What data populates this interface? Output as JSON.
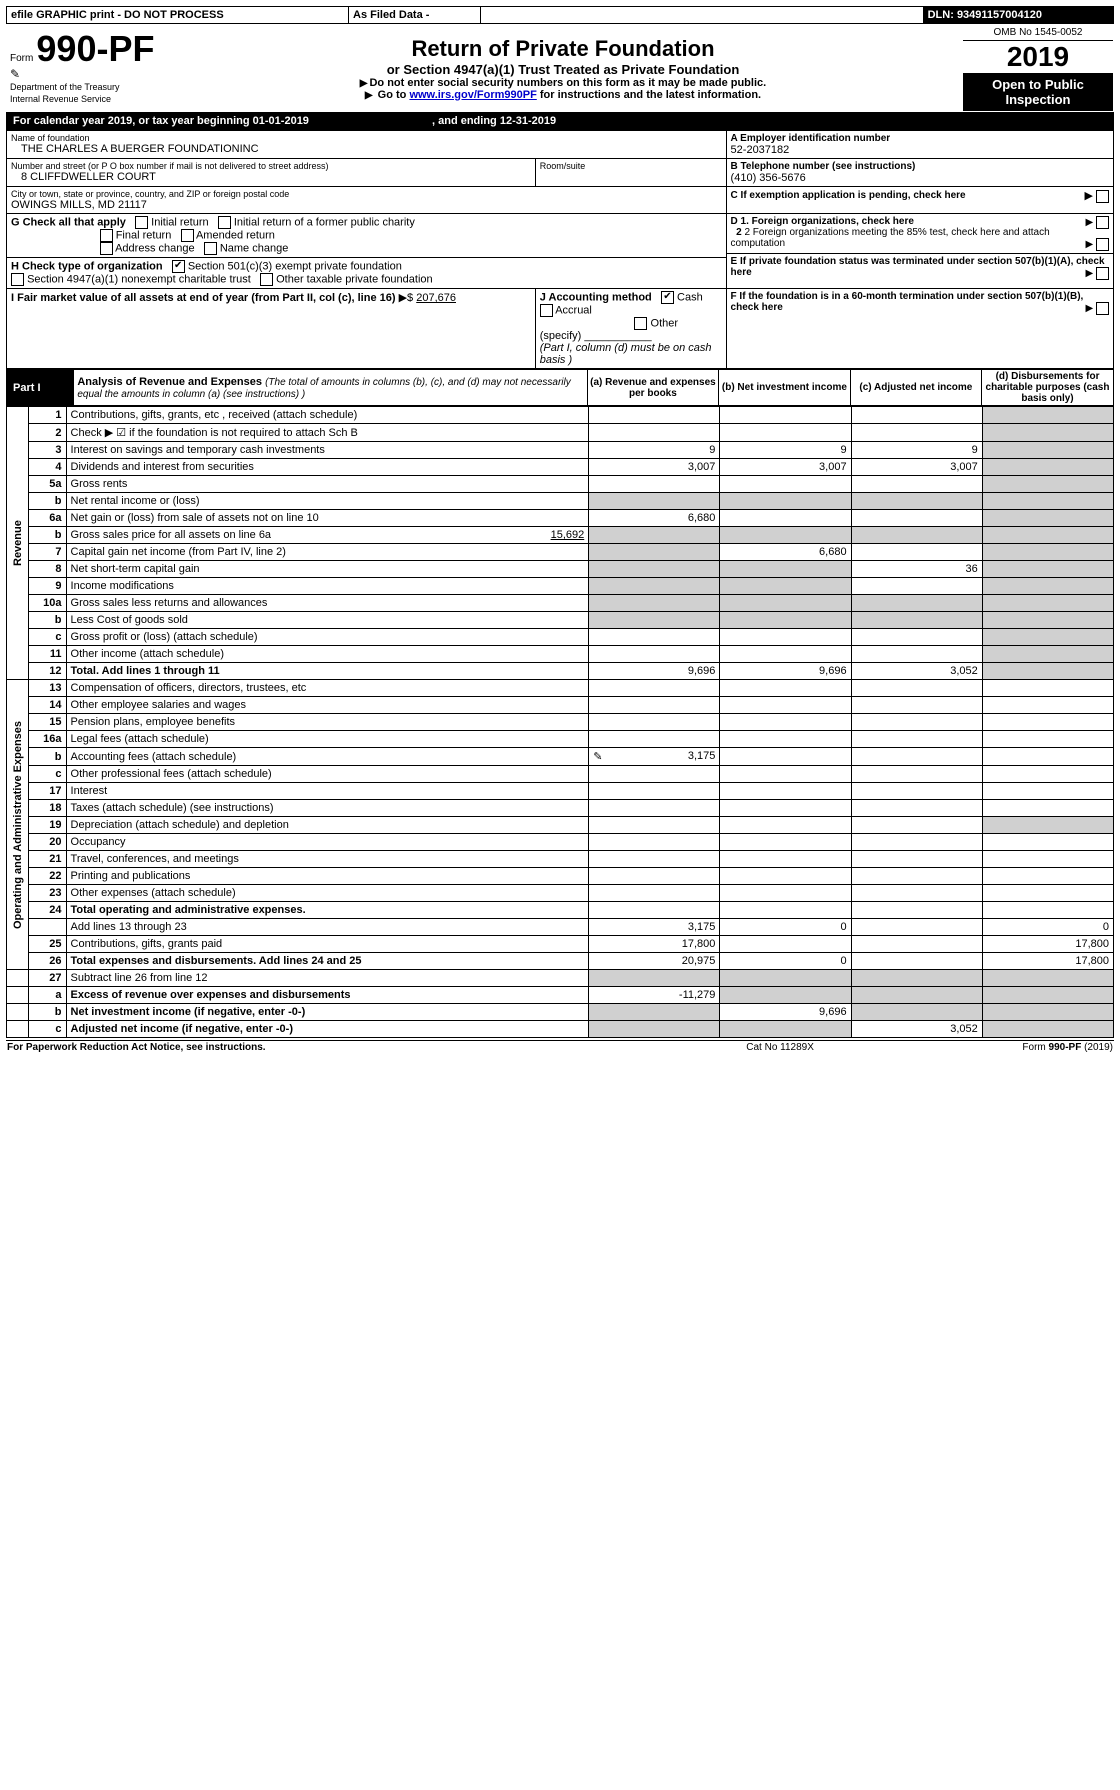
{
  "topbar": {
    "efile": "efile GRAPHIC print - DO NOT PROCESS",
    "asfiled": "As Filed Data -",
    "dln_label": "DLN:",
    "dln": "93491157004120"
  },
  "header": {
    "form_label": "Form",
    "form_no": "990-PF",
    "dept": "Department of the Treasury",
    "irs": "Internal Revenue Service",
    "title": "Return of Private Foundation",
    "subtitle": "or Section 4947(a)(1) Trust Treated as Private Foundation",
    "instr1": "Do not enter social security numbers on this form as it may be made public.",
    "instr2_a": "Go to ",
    "instr2_link": "www.irs.gov/Form990PF",
    "instr2_b": " for instructions and the latest information.",
    "omb": "OMB No 1545-0052",
    "year": "2019",
    "open": "Open to Public Inspection"
  },
  "cal": {
    "text_a": "For calendar year 2019, or tax year beginning ",
    "begin": "01-01-2019",
    "text_b": ", and ending ",
    "end": "12-31-2019"
  },
  "org": {
    "name_label": "Name of foundation",
    "name": "THE CHARLES A BUERGER FOUNDATIONINC",
    "addr_label": "Number and street (or P O  box number if mail is not delivered to street address)",
    "addr": "8 CLIFFDWELLER COURT",
    "room_label": "Room/suite",
    "city_label": "City or town, state or province, country, and ZIP or foreign postal code",
    "city": "OWINGS MILLS, MD  21117",
    "a_label": "A Employer identification number",
    "ein": "52-2037182",
    "b_label": "B Telephone number (see instructions)",
    "phone": "(410) 356-5676",
    "c_label": "C If exemption application is pending, check here"
  },
  "g": {
    "label": "G Check all that apply",
    "o1": "Initial return",
    "o2": "Initial return of a former public charity",
    "o3": "Final return",
    "o4": "Amended return",
    "o5": "Address change",
    "o6": "Name change"
  },
  "h": {
    "label": "H Check type of organization",
    "o1": "Section 501(c)(3) exempt private foundation",
    "o2": "Section 4947(a)(1) nonexempt charitable trust",
    "o3": "Other taxable private foundation"
  },
  "i": {
    "label": "I Fair market value of all assets at end of year (from Part II, col  (c), line 16) ",
    "val_prefix": "$ ",
    "val": "207,676"
  },
  "j": {
    "label": "J Accounting method",
    "cash": "Cash",
    "accrual": "Accrual",
    "other": "Other (specify)",
    "note": "(Part I, column (d) must be on cash basis )"
  },
  "d": {
    "d1": "D 1. Foreign organizations, check here",
    "d2": "2 Foreign organizations meeting the 85% test, check here and attach computation",
    "e": "E  If private foundation status was terminated under section 507(b)(1)(A), check here",
    "f": "F  If the foundation is in a 60-month termination under section 507(b)(1)(B), check here"
  },
  "part1": {
    "tag": "Part I",
    "title": "Analysis of Revenue and Expenses",
    "title_note": " (The total of amounts in columns (b), (c), and (d) may not necessarily equal the amounts in column (a) (see instructions) )",
    "col_a": "(a)  Revenue and expenses per books",
    "col_b": "(b) Net investment income",
    "col_c": "(c) Adjusted net income",
    "col_d": "(d) Disbursements for charitable purposes (cash basis only)",
    "side_rev": "Revenue",
    "side_exp": "Operating and Administrative Expenses"
  },
  "rows": {
    "r1": {
      "n": "1",
      "t": "Contributions, gifts, grants, etc , received (attach schedule)"
    },
    "r2": {
      "n": "2",
      "t": "Check ▶ ☑ if the foundation is not required to attach Sch  B"
    },
    "r3": {
      "n": "3",
      "t": "Interest on savings and temporary cash investments",
      "a": "9",
      "b": "9",
      "c": "9"
    },
    "r4": {
      "n": "4",
      "t": "Dividends and interest from securities",
      "a": "3,007",
      "b": "3,007",
      "c": "3,007"
    },
    "r5a": {
      "n": "5a",
      "t": "Gross rents"
    },
    "r5b": {
      "n": "b",
      "t": "Net rental income or (loss)"
    },
    "r6a": {
      "n": "6a",
      "t": "Net gain or (loss) from sale of assets not on line 10",
      "a": "6,680"
    },
    "r6b": {
      "n": "b",
      "t": "Gross sales price for all assets on line 6a",
      "inline": "15,692"
    },
    "r7": {
      "n": "7",
      "t": "Capital gain net income (from Part IV, line 2)",
      "b": "6,680"
    },
    "r8": {
      "n": "8",
      "t": "Net short-term capital gain",
      "c": "36"
    },
    "r9": {
      "n": "9",
      "t": "Income modifications"
    },
    "r10a": {
      "n": "10a",
      "t": "Gross sales less returns and allowances"
    },
    "r10b": {
      "n": "b",
      "t": "Less  Cost of goods sold"
    },
    "r10c": {
      "n": "c",
      "t": "Gross profit or (loss) (attach schedule)"
    },
    "r11": {
      "n": "11",
      "t": "Other income (attach schedule)"
    },
    "r12": {
      "n": "12",
      "t": "Total. Add lines 1 through 11",
      "bold": true,
      "a": "9,696",
      "b": "9,696",
      "c": "3,052"
    },
    "r13": {
      "n": "13",
      "t": "Compensation of officers, directors, trustees, etc"
    },
    "r14": {
      "n": "14",
      "t": "Other employee salaries and wages"
    },
    "r15": {
      "n": "15",
      "t": "Pension plans, employee benefits"
    },
    "r16a": {
      "n": "16a",
      "t": "Legal fees (attach schedule)"
    },
    "r16b": {
      "n": "b",
      "t": "Accounting fees (attach schedule)",
      "a": "3,175",
      "icon": true
    },
    "r16c": {
      "n": "c",
      "t": "Other professional fees (attach schedule)"
    },
    "r17": {
      "n": "17",
      "t": "Interest"
    },
    "r18": {
      "n": "18",
      "t": "Taxes (attach schedule) (see instructions)"
    },
    "r19": {
      "n": "19",
      "t": "Depreciation (attach schedule) and depletion"
    },
    "r20": {
      "n": "20",
      "t": "Occupancy"
    },
    "r21": {
      "n": "21",
      "t": "Travel, conferences, and meetings"
    },
    "r22": {
      "n": "22",
      "t": "Printing and publications"
    },
    "r23": {
      "n": "23",
      "t": "Other expenses (attach schedule)"
    },
    "r24": {
      "n": "24",
      "t": "Total operating and administrative expenses.",
      "bold": true
    },
    "r24b": {
      "n": "",
      "t": "Add lines 13 through 23",
      "a": "3,175",
      "b": "0",
      "d": "0"
    },
    "r25": {
      "n": "25",
      "t": "Contributions, gifts, grants paid",
      "a": "17,800",
      "d": "17,800"
    },
    "r26": {
      "n": "26",
      "t": "Total expenses and disbursements. Add lines 24 and 25",
      "bold": true,
      "a": "20,975",
      "b": "0",
      "d": "17,800"
    },
    "r27": {
      "n": "27",
      "t": "Subtract line 26 from line 12"
    },
    "r27a": {
      "n": "a",
      "t": "Excess of revenue over expenses and disbursements",
      "bold": true,
      "a": "-11,279"
    },
    "r27b": {
      "n": "b",
      "t": "Net investment income (if negative, enter -0-)",
      "bold": true,
      "b": "9,696"
    },
    "r27c": {
      "n": "c",
      "t": "Adjusted net income (if negative, enter -0-)",
      "bold": true,
      "c": "3,052"
    }
  },
  "footer": {
    "left": "For Paperwork Reduction Act Notice, see instructions.",
    "mid": "Cat  No  11289X",
    "right": "Form 990-PF (2019)"
  }
}
